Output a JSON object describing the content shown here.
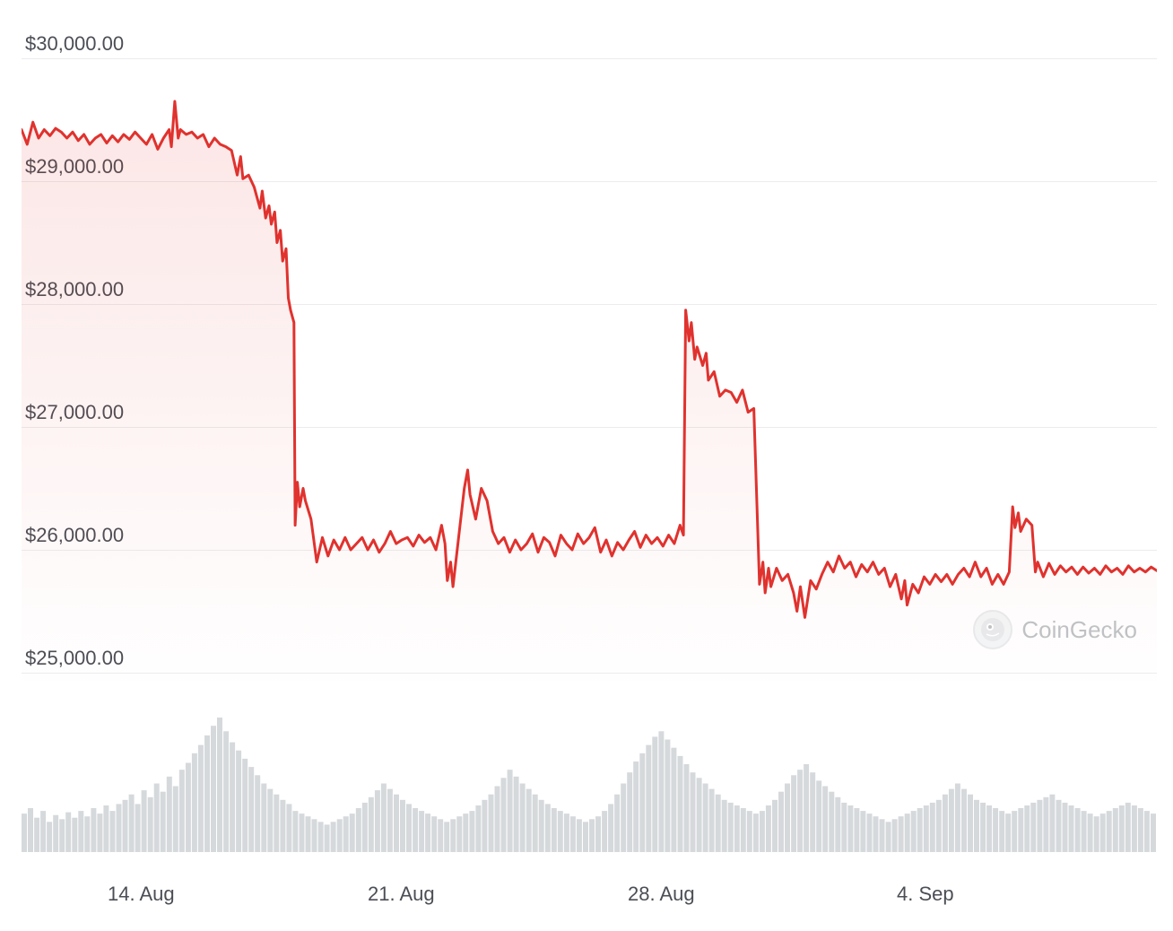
{
  "chart": {
    "type": "line-area",
    "background_color": "#ffffff",
    "grid_color": "#ececef",
    "label_color": "#4b4e55",
    "label_fontsize": 22,
    "y_axis": {
      "min": 25000,
      "max": 30000,
      "tick_step": 1000,
      "tick_labels": [
        "$30,000.00",
        "$29,000.00",
        "$28,000.00",
        "$27,000.00",
        "$26,000.00",
        "$25,000.00"
      ],
      "tick_values": [
        30000,
        29000,
        28000,
        27000,
        26000,
        25000
      ]
    },
    "x_axis": {
      "tick_labels": [
        "14. Aug",
        "21. Aug",
        "28. Aug",
        "4. Sep"
      ],
      "tick_positions_pct": [
        10.5,
        34,
        57.5,
        81
      ]
    },
    "price_series": {
      "line_color": "#e0322e",
      "line_width": 3,
      "fill_top_color": "rgba(224,50,46,0.12)",
      "fill_bottom_color": "rgba(224,50,46,0.0)",
      "data": [
        [
          0,
          29420
        ],
        [
          0.5,
          29300
        ],
        [
          1,
          29480
        ],
        [
          1.5,
          29350
        ],
        [
          2,
          29420
        ],
        [
          2.5,
          29370
        ],
        [
          3,
          29430
        ],
        [
          3.5,
          29400
        ],
        [
          4,
          29350
        ],
        [
          4.5,
          29400
        ],
        [
          5,
          29330
        ],
        [
          5.5,
          29380
        ],
        [
          6,
          29300
        ],
        [
          6.5,
          29350
        ],
        [
          7,
          29380
        ],
        [
          7.5,
          29310
        ],
        [
          8,
          29370
        ],
        [
          8.5,
          29320
        ],
        [
          9,
          29380
        ],
        [
          9.5,
          29340
        ],
        [
          10,
          29400
        ],
        [
          10.5,
          29350
        ],
        [
          11,
          29300
        ],
        [
          11.5,
          29380
        ],
        [
          12,
          29260
        ],
        [
          12.5,
          29350
        ],
        [
          13,
          29420
        ],
        [
          13.2,
          29280
        ],
        [
          13.5,
          29650
        ],
        [
          13.8,
          29350
        ],
        [
          14,
          29420
        ],
        [
          14.5,
          29380
        ],
        [
          15,
          29400
        ],
        [
          15.5,
          29350
        ],
        [
          16,
          29380
        ],
        [
          16.5,
          29280
        ],
        [
          17,
          29350
        ],
        [
          17.5,
          29300
        ],
        [
          18,
          29280
        ],
        [
          18.5,
          29250
        ],
        [
          19,
          29050
        ],
        [
          19.3,
          29200
        ],
        [
          19.5,
          29020
        ],
        [
          20,
          29050
        ],
        [
          20.5,
          28950
        ],
        [
          21,
          28780
        ],
        [
          21.2,
          28920
        ],
        [
          21.5,
          28700
        ],
        [
          21.8,
          28800
        ],
        [
          22,
          28650
        ],
        [
          22.3,
          28750
        ],
        [
          22.5,
          28500
        ],
        [
          22.8,
          28600
        ],
        [
          23,
          28350
        ],
        [
          23.3,
          28450
        ],
        [
          23.5,
          28050
        ],
        [
          23.7,
          27950
        ],
        [
          24,
          27850
        ],
        [
          24.1,
          26200
        ],
        [
          24.3,
          26550
        ],
        [
          24.5,
          26350
        ],
        [
          24.8,
          26500
        ],
        [
          25,
          26400
        ],
        [
          25.5,
          26250
        ],
        [
          26,
          25900
        ],
        [
          26.5,
          26100
        ],
        [
          27,
          25950
        ],
        [
          27.5,
          26080
        ],
        [
          28,
          26000
        ],
        [
          28.5,
          26100
        ],
        [
          29,
          26000
        ],
        [
          29.5,
          26050
        ],
        [
          30,
          26100
        ],
        [
          30.5,
          26000
        ],
        [
          31,
          26080
        ],
        [
          31.5,
          25980
        ],
        [
          32,
          26050
        ],
        [
          32.5,
          26150
        ],
        [
          33,
          26050
        ],
        [
          33.5,
          26080
        ],
        [
          34,
          26100
        ],
        [
          34.5,
          26030
        ],
        [
          35,
          26120
        ],
        [
          35.5,
          26060
        ],
        [
          36,
          26100
        ],
        [
          36.5,
          26000
        ],
        [
          37,
          26200
        ],
        [
          37.3,
          26050
        ],
        [
          37.5,
          25750
        ],
        [
          37.8,
          25900
        ],
        [
          38,
          25700
        ],
        [
          38.5,
          26100
        ],
        [
          39,
          26500
        ],
        [
          39.3,
          26650
        ],
        [
          39.5,
          26450
        ],
        [
          40,
          26250
        ],
        [
          40.5,
          26500
        ],
        [
          41,
          26400
        ],
        [
          41.5,
          26150
        ],
        [
          42,
          26050
        ],
        [
          42.5,
          26100
        ],
        [
          43,
          25980
        ],
        [
          43.5,
          26080
        ],
        [
          44,
          26000
        ],
        [
          44.5,
          26050
        ],
        [
          45,
          26130
        ],
        [
          45.5,
          25980
        ],
        [
          46,
          26100
        ],
        [
          46.5,
          26060
        ],
        [
          47,
          25950
        ],
        [
          47.5,
          26120
        ],
        [
          48,
          26050
        ],
        [
          48.5,
          26000
        ],
        [
          49,
          26130
        ],
        [
          49.5,
          26050
        ],
        [
          50,
          26100
        ],
        [
          50.5,
          26180
        ],
        [
          51,
          25980
        ],
        [
          51.5,
          26080
        ],
        [
          52,
          25950
        ],
        [
          52.5,
          26060
        ],
        [
          53,
          26000
        ],
        [
          53.5,
          26080
        ],
        [
          54,
          26150
        ],
        [
          54.5,
          26020
        ],
        [
          55,
          26120
        ],
        [
          55.5,
          26050
        ],
        [
          56,
          26100
        ],
        [
          56.5,
          26030
        ],
        [
          57,
          26120
        ],
        [
          57.5,
          26050
        ],
        [
          58,
          26200
        ],
        [
          58.3,
          26120
        ],
        [
          58.5,
          27950
        ],
        [
          58.8,
          27700
        ],
        [
          59,
          27850
        ],
        [
          59.3,
          27550
        ],
        [
          59.5,
          27650
        ],
        [
          60,
          27500
        ],
        [
          60.3,
          27600
        ],
        [
          60.5,
          27380
        ],
        [
          61,
          27450
        ],
        [
          61.5,
          27250
        ],
        [
          62,
          27300
        ],
        [
          62.5,
          27280
        ],
        [
          63,
          27200
        ],
        [
          63.5,
          27300
        ],
        [
          64,
          27120
        ],
        [
          64.5,
          27150
        ],
        [
          65,
          25720
        ],
        [
          65.3,
          25900
        ],
        [
          65.5,
          25650
        ],
        [
          65.8,
          25850
        ],
        [
          66,
          25700
        ],
        [
          66.5,
          25850
        ],
        [
          67,
          25750
        ],
        [
          67.5,
          25800
        ],
        [
          68,
          25650
        ],
        [
          68.3,
          25500
        ],
        [
          68.6,
          25700
        ],
        [
          69,
          25450
        ],
        [
          69.5,
          25750
        ],
        [
          70,
          25680
        ],
        [
          70.5,
          25800
        ],
        [
          71,
          25900
        ],
        [
          71.5,
          25820
        ],
        [
          72,
          25950
        ],
        [
          72.5,
          25850
        ],
        [
          73,
          25900
        ],
        [
          73.5,
          25780
        ],
        [
          74,
          25880
        ],
        [
          74.5,
          25820
        ],
        [
          75,
          25900
        ],
        [
          75.5,
          25800
        ],
        [
          76,
          25850
        ],
        [
          76.5,
          25700
        ],
        [
          77,
          25800
        ],
        [
          77.5,
          25600
        ],
        [
          77.8,
          25750
        ],
        [
          78,
          25550
        ],
        [
          78.5,
          25720
        ],
        [
          79,
          25650
        ],
        [
          79.5,
          25780
        ],
        [
          80,
          25720
        ],
        [
          80.5,
          25800
        ],
        [
          81,
          25740
        ],
        [
          81.5,
          25800
        ],
        [
          82,
          25720
        ],
        [
          82.5,
          25800
        ],
        [
          83,
          25850
        ],
        [
          83.5,
          25780
        ],
        [
          84,
          25900
        ],
        [
          84.5,
          25780
        ],
        [
          85,
          25850
        ],
        [
          85.5,
          25720
        ],
        [
          86,
          25800
        ],
        [
          86.5,
          25720
        ],
        [
          87,
          25820
        ],
        [
          87.3,
          26350
        ],
        [
          87.5,
          26180
        ],
        [
          87.8,
          26300
        ],
        [
          88,
          26150
        ],
        [
          88.5,
          26250
        ],
        [
          89,
          26200
        ],
        [
          89.3,
          25820
        ],
        [
          89.5,
          25900
        ],
        [
          90,
          25780
        ],
        [
          90.5,
          25890
        ],
        [
          91,
          25800
        ],
        [
          91.5,
          25870
        ],
        [
          92,
          25820
        ],
        [
          92.5,
          25860
        ],
        [
          93,
          25800
        ],
        [
          93.5,
          25860
        ],
        [
          94,
          25810
        ],
        [
          94.5,
          25850
        ],
        [
          95,
          25800
        ],
        [
          95.5,
          25870
        ],
        [
          96,
          25820
        ],
        [
          96.5,
          25850
        ],
        [
          97,
          25800
        ],
        [
          97.5,
          25870
        ],
        [
          98,
          25820
        ],
        [
          98.5,
          25850
        ],
        [
          99,
          25820
        ],
        [
          99.5,
          25860
        ],
        [
          100,
          25830
        ]
      ]
    },
    "volume_series": {
      "bar_color": "#d6d9dc",
      "data": [
        28,
        32,
        25,
        30,
        22,
        27,
        24,
        29,
        25,
        30,
        26,
        32,
        28,
        34,
        30,
        35,
        38,
        42,
        35,
        45,
        40,
        50,
        44,
        55,
        48,
        60,
        65,
        72,
        78,
        85,
        92,
        98,
        88,
        80,
        74,
        68,
        62,
        56,
        50,
        46,
        42,
        38,
        35,
        30,
        28,
        26,
        24,
        22,
        20,
        22,
        24,
        26,
        28,
        32,
        36,
        40,
        45,
        50,
        46,
        42,
        38,
        35,
        32,
        30,
        28,
        26,
        24,
        22,
        24,
        26,
        28,
        30,
        34,
        38,
        42,
        48,
        54,
        60,
        55,
        50,
        46,
        42,
        38,
        35,
        32,
        30,
        28,
        26,
        24,
        22,
        24,
        26,
        30,
        35,
        42,
        50,
        58,
        66,
        72,
        78,
        84,
        88,
        82,
        76,
        70,
        64,
        58,
        54,
        50,
        46,
        42,
        38,
        36,
        34,
        32,
        30,
        28,
        30,
        34,
        38,
        44,
        50,
        56,
        60,
        64,
        58,
        52,
        48,
        44,
        40,
        36,
        34,
        32,
        30,
        28,
        26,
        24,
        22,
        24,
        26,
        28,
        30,
        32,
        34,
        36,
        38,
        42,
        46,
        50,
        46,
        42,
        38,
        36,
        34,
        32,
        30,
        28,
        30,
        32,
        34,
        36,
        38,
        40,
        42,
        38,
        36,
        34,
        32,
        30,
        28,
        26,
        28,
        30,
        32,
        34,
        36,
        34,
        32,
        30,
        28
      ]
    }
  },
  "watermark": {
    "text": "CoinGecko",
    "text_color": "#8c9196",
    "logo_bg": "#ebedef",
    "logo_border": "#d6d9dc"
  }
}
